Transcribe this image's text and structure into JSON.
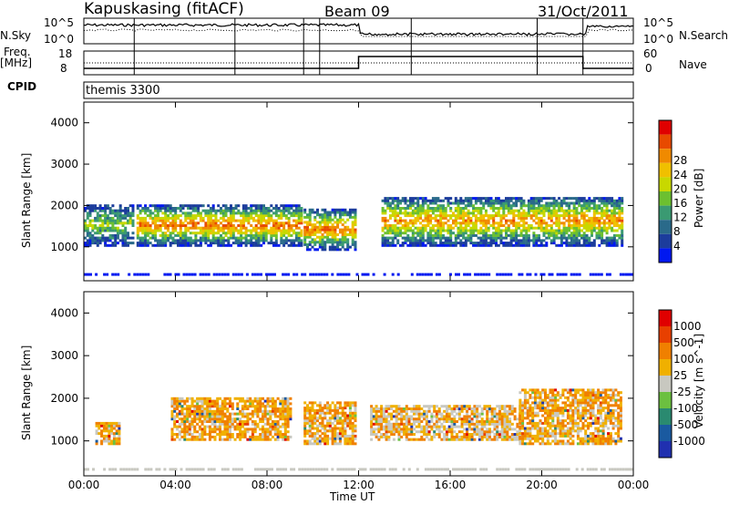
{
  "header": {
    "title": "Kapuskasing (fitACF)",
    "beam": "Beam 09",
    "date": "31/Oct/2011"
  },
  "summary_panels": {
    "nsky_label": "N.Sky",
    "nsky_ticks": [
      "10^5",
      "10^0"
    ],
    "nsearch_label": "N.Search",
    "nsearch_ticks": [
      "10^5",
      "10^0"
    ],
    "freq_label": "Freq.",
    "freq_unit": "[MHz]",
    "freq_ticks": [
      "18",
      "8"
    ],
    "nave_label": "Nave",
    "nave_ticks": [
      "60",
      "0"
    ],
    "cpid_label": "CPID",
    "cpid_value": "themis 3300"
  },
  "chart_data": [
    {
      "type": "heatmap",
      "name": "power",
      "ylabel": "Slant Range [km]",
      "xlabel": "Time UT",
      "ylim": [
        180,
        4500
      ],
      "yticks": [
        "1000",
        "2000",
        "3000",
        "4000"
      ],
      "xticks": [
        "00:00",
        "04:00",
        "08:00",
        "12:00",
        "16:00",
        "20:00",
        "00:00"
      ],
      "colorbar": {
        "label": "Power [dB]",
        "ticks": [
          "4",
          "8",
          "12",
          "16",
          "20",
          "24",
          "28"
        ],
        "colors": [
          "#0018f0",
          "#1c3c9c",
          "#2a6a8a",
          "#3a9a72",
          "#6cc030",
          "#c8d800",
          "#f0c000",
          "#f08a00",
          "#e84a00",
          "#e00000"
        ]
      },
      "regions": [
        {
          "time": [
            0.0,
            2.2
          ],
          "range": [
            1000,
            2000
          ],
          "level": 0.3
        },
        {
          "time": [
            2.3,
            9.5
          ],
          "range": [
            1000,
            2000
          ],
          "level": 0.55
        },
        {
          "time": [
            9.6,
            11.8
          ],
          "range": [
            900,
            1900
          ],
          "level": 0.55
        },
        {
          "time": [
            13.0,
            23.5
          ],
          "range": [
            1000,
            2200
          ],
          "level": 0.5
        }
      ]
    },
    {
      "type": "heatmap",
      "name": "velocity",
      "ylabel": "Slant Range [km]",
      "xlabel": "Time UT",
      "ylim": [
        180,
        4500
      ],
      "yticks": [
        "1000",
        "2000",
        "3000",
        "4000"
      ],
      "xticks": [
        "00:00",
        "04:00",
        "08:00",
        "12:00",
        "16:00",
        "20:00",
        "00:00"
      ],
      "colorbar": {
        "label": "Velocity [m s^-1]",
        "ticks": [
          "1000",
          "500",
          "100",
          "25",
          "-25",
          "-100",
          "-500",
          "-1000"
        ],
        "colors": [
          "#2030b0",
          "#1a5aa0",
          "#2a8a70",
          "#6cc040",
          "#c8c8c0",
          "#f0b000",
          "#f08000",
          "#e84000",
          "#e00000"
        ]
      },
      "regions": [
        {
          "time": [
            0.5,
            1.5
          ],
          "range": [
            900,
            1400
          ],
          "level": 0.7
        },
        {
          "time": [
            3.8,
            9.0
          ],
          "range": [
            1000,
            2000
          ],
          "level": 0.75
        },
        {
          "time": [
            9.6,
            11.8
          ],
          "range": [
            900,
            1900
          ],
          "level": 0.7
        },
        {
          "time": [
            12.5,
            19.0
          ],
          "range": [
            1000,
            1800
          ],
          "level": 0.5
        },
        {
          "time": [
            19.0,
            23.5
          ],
          "range": [
            900,
            2200
          ],
          "level": 0.7
        }
      ]
    }
  ]
}
